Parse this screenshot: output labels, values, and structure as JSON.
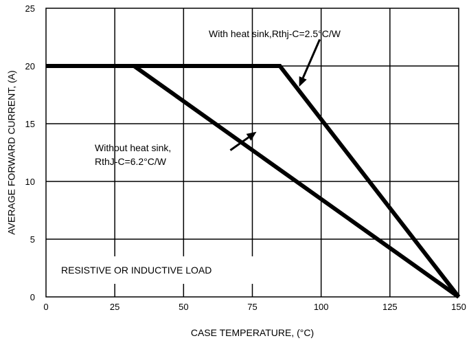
{
  "chart_data": {
    "type": "line",
    "xlabel": "CASE TEMPERATURE, (°C)",
    "ylabel": "AVERAGE FORWARD CURRENT, (A)",
    "xlim": [
      0,
      150
    ],
    "ylim": [
      0,
      25
    ],
    "x_ticks": [
      0,
      25,
      50,
      75,
      100,
      125,
      150
    ],
    "y_ticks": [
      0,
      5,
      10,
      15,
      20,
      25
    ],
    "grid": true,
    "series": [
      {
        "name": "With heat sink,Rthj-C=2.5°C/W",
        "points": [
          [
            0,
            20
          ],
          [
            85,
            20
          ],
          [
            150,
            0
          ]
        ]
      },
      {
        "name": "Without heat sink,\nRthJ-C=6.2°C/W",
        "points": [
          [
            0,
            20
          ],
          [
            32,
            20
          ],
          [
            150,
            0
          ]
        ]
      }
    ],
    "annotations": {
      "with_heat_sink": "With heat sink,Rthj-C=2.5°C/W",
      "without_heat_sink_line1": "Without heat sink,",
      "without_heat_sink_line2": "RthJ-C=6.2°C/W",
      "load": "RESISTIVE OR INDUCTIVE LOAD"
    },
    "colors": {
      "line": "#000000",
      "grid": "#000000",
      "background": "#ffffff"
    }
  }
}
